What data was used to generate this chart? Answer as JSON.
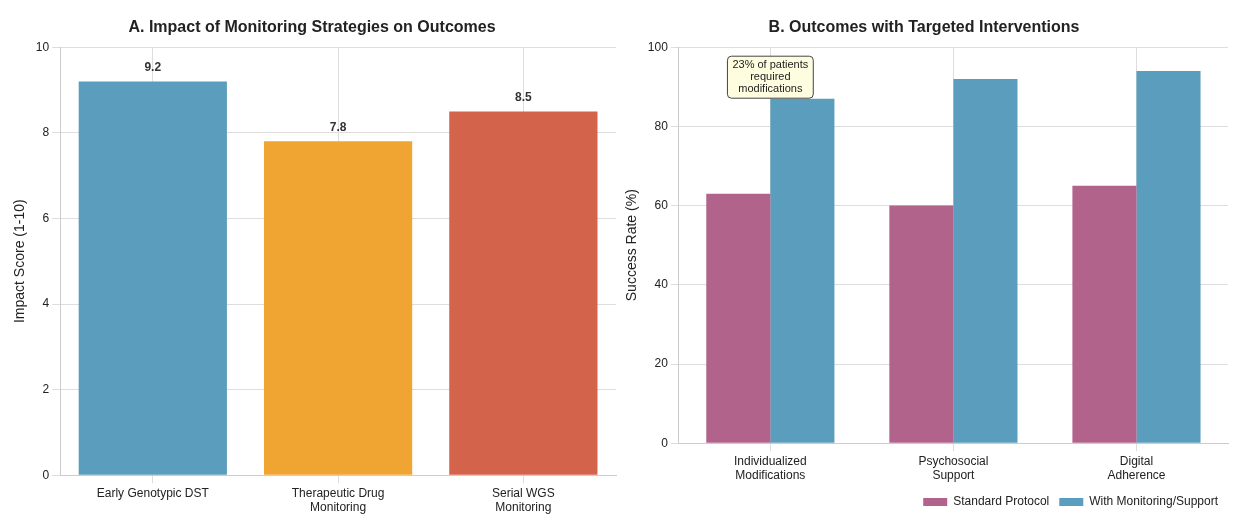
{
  "chart_data": [
    {
      "type": "bar",
      "title": "A. Impact of Monitoring Strategies on Outcomes",
      "ylabel": "Impact Score (1-10)",
      "categories": [
        "Early Genotypic DST",
        "Therapeutic Drug Monitoring",
        "Serial WGS Monitoring"
      ],
      "values": [
        9.2,
        7.8,
        8.5
      ],
      "colors": [
        "#5a9dbc",
        "#f0a431",
        "#d3634a"
      ],
      "ylim": [
        0,
        10
      ],
      "yticks": [
        0,
        2,
        4,
        6,
        8,
        10
      ],
      "grid": true,
      "data_labels": true
    },
    {
      "type": "bar",
      "title": "B. Outcomes with Targeted Interventions",
      "ylabel": "Success Rate (%)",
      "categories": [
        "Individualized Modifications",
        "Psychosocial Support",
        "Digital Adherence"
      ],
      "series": [
        {
          "name": "Standard Protocol",
          "color": "#b2638b",
          "values": [
            63,
            60,
            65
          ]
        },
        {
          "name": "With Monitoring/Support",
          "color": "#5a9dbc",
          "values": [
            87,
            92,
            94
          ]
        }
      ],
      "ylim": [
        0,
        100
      ],
      "yticks": [
        0,
        20,
        40,
        60,
        80,
        100
      ],
      "grid": true,
      "legend": "bottom right",
      "annotations": [
        "23% of patients\nrequired\nmodifications"
      ]
    }
  ]
}
